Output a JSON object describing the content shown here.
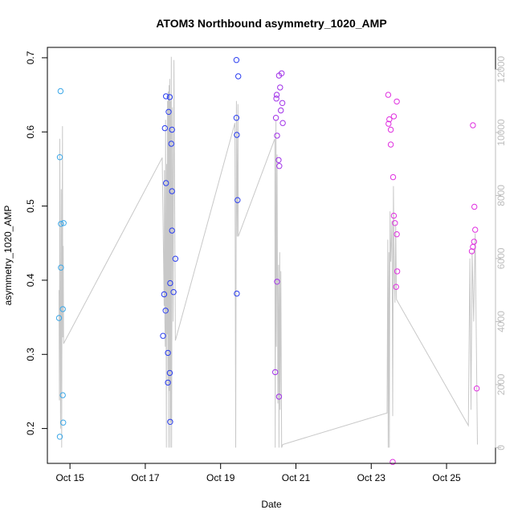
{
  "chart_data": {
    "type": "scatter",
    "title": "ATOM3 Northbound asymmetry_1020_AMP",
    "xlabel": "Date",
    "ylabel": "asymmetry_1020_AMP",
    "x_ticks": [
      "Oct 15",
      "Oct 17",
      "Oct 19",
      "Oct 21",
      "Oct 23",
      "Oct 25"
    ],
    "x_tick_values": [
      15,
      17,
      19,
      21,
      23,
      25
    ],
    "xlim": [
      14.4,
      26.3
    ],
    "ylim": [
      0.153,
      0.714
    ],
    "y_ticks": [
      "0.2",
      "0.3",
      "0.4",
      "0.5",
      "0.6",
      "0.7"
    ],
    "y_tick_values": [
      0.2,
      0.3,
      0.4,
      0.5,
      0.6,
      0.7
    ],
    "y2lim": [
      -500,
      12700
    ],
    "y2_ticks": [
      "0",
      "2000",
      "4000",
      "6000",
      "8000",
      "10000",
      "12000"
    ],
    "y2_tick_values": [
      0,
      2000,
      4000,
      6000,
      8000,
      10000,
      12000
    ],
    "colors": {
      "axis": "#000000",
      "right_axis": "#bdbdbd",
      "count_line": "#c8c8c8",
      "points_early": "#3aa7e8",
      "points_mid": "#2a3df0",
      "points_late": "#a030e8",
      "points_end": "#e030e0"
    },
    "series": [
      {
        "color": "#3aa7e8",
        "points": [
          {
            "x": 14.75,
            "y": 0.655
          },
          {
            "x": 14.73,
            "y": 0.566
          },
          {
            "x": 14.76,
            "y": 0.476
          },
          {
            "x": 14.83,
            "y": 0.477
          },
          {
            "x": 14.76,
            "y": 0.417
          },
          {
            "x": 14.81,
            "y": 0.361
          },
          {
            "x": 14.71,
            "y": 0.349
          },
          {
            "x": 14.81,
            "y": 0.245
          },
          {
            "x": 14.82,
            "y": 0.208
          },
          {
            "x": 14.73,
            "y": 0.189
          }
        ]
      },
      {
        "color": "#2a3df0",
        "points": [
          {
            "x": 17.55,
            "y": 0.648
          },
          {
            "x": 17.65,
            "y": 0.647
          },
          {
            "x": 17.62,
            "y": 0.627
          },
          {
            "x": 17.52,
            "y": 0.605
          },
          {
            "x": 17.71,
            "y": 0.603
          },
          {
            "x": 17.69,
            "y": 0.584
          },
          {
            "x": 17.55,
            "y": 0.531
          },
          {
            "x": 17.71,
            "y": 0.52
          },
          {
            "x": 17.71,
            "y": 0.467
          },
          {
            "x": 17.8,
            "y": 0.429
          },
          {
            "x": 17.66,
            "y": 0.396
          },
          {
            "x": 17.75,
            "y": 0.384
          },
          {
            "x": 17.5,
            "y": 0.381
          },
          {
            "x": 17.54,
            "y": 0.359
          },
          {
            "x": 17.47,
            "y": 0.325
          },
          {
            "x": 17.6,
            "y": 0.302
          },
          {
            "x": 17.65,
            "y": 0.275
          },
          {
            "x": 17.6,
            "y": 0.262
          },
          {
            "x": 17.66,
            "y": 0.209
          },
          {
            "x": 19.42,
            "y": 0.697
          },
          {
            "x": 19.47,
            "y": 0.675
          },
          {
            "x": 19.42,
            "y": 0.619
          },
          {
            "x": 19.43,
            "y": 0.596
          },
          {
            "x": 19.45,
            "y": 0.508
          },
          {
            "x": 19.43,
            "y": 0.382
          }
        ]
      },
      {
        "color": "#a030e8",
        "points": [
          {
            "x": 20.62,
            "y": 0.679
          },
          {
            "x": 20.55,
            "y": 0.676
          },
          {
            "x": 20.58,
            "y": 0.66
          },
          {
            "x": 20.49,
            "y": 0.65
          },
          {
            "x": 20.48,
            "y": 0.645
          },
          {
            "x": 20.64,
            "y": 0.639
          },
          {
            "x": 20.6,
            "y": 0.629
          },
          {
            "x": 20.47,
            "y": 0.619
          },
          {
            "x": 20.65,
            "y": 0.612
          },
          {
            "x": 20.5,
            "y": 0.595
          },
          {
            "x": 20.54,
            "y": 0.562
          },
          {
            "x": 20.56,
            "y": 0.554
          },
          {
            "x": 20.5,
            "y": 0.398
          },
          {
            "x": 20.45,
            "y": 0.276
          },
          {
            "x": 20.55,
            "y": 0.243
          }
        ]
      },
      {
        "color": "#e030e0",
        "points": [
          {
            "x": 23.45,
            "y": 0.65
          },
          {
            "x": 23.68,
            "y": 0.641
          },
          {
            "x": 23.6,
            "y": 0.621
          },
          {
            "x": 23.48,
            "y": 0.617
          },
          {
            "x": 23.46,
            "y": 0.611
          },
          {
            "x": 23.52,
            "y": 0.603
          },
          {
            "x": 23.52,
            "y": 0.583
          },
          {
            "x": 23.58,
            "y": 0.539
          },
          {
            "x": 23.6,
            "y": 0.487
          },
          {
            "x": 23.63,
            "y": 0.477
          },
          {
            "x": 23.68,
            "y": 0.462
          },
          {
            "x": 23.69,
            "y": 0.412
          },
          {
            "x": 23.66,
            "y": 0.391
          },
          {
            "x": 23.57,
            "y": 0.155
          },
          {
            "x": 25.7,
            "y": 0.609
          },
          {
            "x": 25.74,
            "y": 0.499
          },
          {
            "x": 25.76,
            "y": 0.468
          },
          {
            "x": 25.73,
            "y": 0.452
          },
          {
            "x": 25.7,
            "y": 0.445
          },
          {
            "x": 25.67,
            "y": 0.439
          },
          {
            "x": 25.8,
            "y": 0.254
          }
        ]
      }
    ],
    "count_line": {
      "axis": "right",
      "points": [
        {
          "x": 14.71,
          "y": 5000
        },
        {
          "x": 14.72,
          "y": 1500
        },
        {
          "x": 14.73,
          "y": 9800
        },
        {
          "x": 14.74,
          "y": 5500
        },
        {
          "x": 14.75,
          "y": 600
        },
        {
          "x": 14.76,
          "y": 4000
        },
        {
          "x": 14.77,
          "y": 8200
        },
        {
          "x": 14.78,
          "y": 0
        },
        {
          "x": 14.79,
          "y": 5800
        },
        {
          "x": 14.8,
          "y": 10200
        },
        {
          "x": 14.81,
          "y": 3500
        },
        {
          "x": 14.82,
          "y": 6400
        },
        {
          "x": 14.83,
          "y": 3300
        },
        {
          "x": 17.45,
          "y": 9200
        },
        {
          "x": 17.48,
          "y": 6500
        },
        {
          "x": 17.5,
          "y": 4500
        },
        {
          "x": 17.51,
          "y": 8800
        },
        {
          "x": 17.52,
          "y": 4000
        },
        {
          "x": 17.53,
          "y": 3200
        },
        {
          "x": 17.54,
          "y": 10400
        },
        {
          "x": 17.56,
          "y": 0
        },
        {
          "x": 17.57,
          "y": 9000
        },
        {
          "x": 17.58,
          "y": 3600
        },
        {
          "x": 17.59,
          "y": 11000
        },
        {
          "x": 17.6,
          "y": 2000
        },
        {
          "x": 17.61,
          "y": 11300
        },
        {
          "x": 17.62,
          "y": 0
        },
        {
          "x": 17.63,
          "y": 11500
        },
        {
          "x": 17.64,
          "y": 1800
        },
        {
          "x": 17.65,
          "y": 11700
        },
        {
          "x": 17.66,
          "y": 0
        },
        {
          "x": 17.67,
          "y": 11000
        },
        {
          "x": 17.68,
          "y": 800
        },
        {
          "x": 17.69,
          "y": 12400
        },
        {
          "x": 17.7,
          "y": 0
        },
        {
          "x": 17.72,
          "y": 10800
        },
        {
          "x": 17.74,
          "y": 4000
        },
        {
          "x": 17.76,
          "y": 12300
        },
        {
          "x": 17.8,
          "y": 3400
        },
        {
          "x": 19.38,
          "y": 10300
        },
        {
          "x": 19.4,
          "y": 0
        },
        {
          "x": 19.42,
          "y": 11000
        },
        {
          "x": 19.44,
          "y": 6700
        },
        {
          "x": 19.46,
          "y": 10900
        },
        {
          "x": 19.47,
          "y": 6700
        },
        {
          "x": 20.44,
          "y": 9800
        },
        {
          "x": 20.45,
          "y": 0
        },
        {
          "x": 20.47,
          "y": 10400
        },
        {
          "x": 20.48,
          "y": 3200
        },
        {
          "x": 20.5,
          "y": 9300
        },
        {
          "x": 20.52,
          "y": 1400
        },
        {
          "x": 20.54,
          "y": 5800
        },
        {
          "x": 20.55,
          "y": 0
        },
        {
          "x": 20.57,
          "y": 6200
        },
        {
          "x": 20.58,
          "y": 1200
        },
        {
          "x": 20.6,
          "y": 5600
        },
        {
          "x": 20.62,
          "y": 0
        },
        {
          "x": 20.65,
          "y": 100
        },
        {
          "x": 23.42,
          "y": 1100
        },
        {
          "x": 23.44,
          "y": 6600
        },
        {
          "x": 23.45,
          "y": 0
        },
        {
          "x": 23.47,
          "y": 6200
        },
        {
          "x": 23.48,
          "y": 0
        },
        {
          "x": 23.5,
          "y": 7500
        },
        {
          "x": 23.52,
          "y": 5900
        },
        {
          "x": 23.55,
          "y": 7200
        },
        {
          "x": 23.57,
          "y": 1000
        },
        {
          "x": 23.59,
          "y": 8300
        },
        {
          "x": 23.61,
          "y": 5500
        },
        {
          "x": 23.63,
          "y": 4600
        },
        {
          "x": 23.65,
          "y": 7100
        },
        {
          "x": 23.67,
          "y": 4700
        },
        {
          "x": 25.58,
          "y": 700
        },
        {
          "x": 25.62,
          "y": 6000
        },
        {
          "x": 25.65,
          "y": 1200
        },
        {
          "x": 25.68,
          "y": 6200
        },
        {
          "x": 25.72,
          "y": 4000
        },
        {
          "x": 25.76,
          "y": 6800
        },
        {
          "x": 25.82,
          "y": 100
        }
      ]
    },
    "grid": false,
    "legend": "none"
  }
}
